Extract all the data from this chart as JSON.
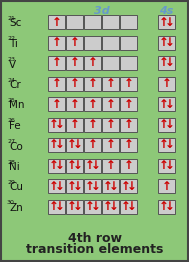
{
  "background_color": "#8dc878",
  "box_bg": "#cccccc",
  "box_border": "#555555",
  "arrow_color": "#cc0000",
  "header_color": "#6699cc",
  "title_color": "#222222",
  "elements": [
    {
      "symbol": "Sc",
      "num": "21",
      "3d": [
        1,
        0,
        0,
        0,
        0
      ],
      "4s": 2
    },
    {
      "symbol": "Ti",
      "num": "22",
      "3d": [
        1,
        1,
        0,
        0,
        0
      ],
      "4s": 2
    },
    {
      "symbol": "V",
      "num": "23",
      "3d": [
        1,
        1,
        1,
        0,
        0
      ],
      "4s": 2
    },
    {
      "symbol": "Cr",
      "num": "24",
      "3d": [
        1,
        1,
        1,
        1,
        1
      ],
      "4s": 1
    },
    {
      "symbol": "Mn",
      "num": "25",
      "3d": [
        1,
        1,
        1,
        1,
        1
      ],
      "4s": 2
    },
    {
      "symbol": "Fe",
      "num": "26",
      "3d": [
        2,
        1,
        1,
        1,
        1
      ],
      "4s": 2
    },
    {
      "symbol": "Co",
      "num": "27",
      "3d": [
        2,
        2,
        1,
        1,
        1
      ],
      "4s": 2
    },
    {
      "symbol": "Ni",
      "num": "28",
      "3d": [
        2,
        2,
        2,
        1,
        1
      ],
      "4s": 2
    },
    {
      "symbol": "Cu",
      "num": "29",
      "3d": [
        2,
        2,
        2,
        2,
        2
      ],
      "4s": 1
    },
    {
      "symbol": "Zn",
      "num": "30",
      "3d": [
        2,
        2,
        2,
        2,
        2
      ],
      "4s": 2
    }
  ],
  "label_3d": "3d",
  "label_4s": "4s",
  "title_line1": "4th row",
  "title_line2": "transition elements",
  "figw": 1.89,
  "figh": 2.62,
  "dpi": 100
}
